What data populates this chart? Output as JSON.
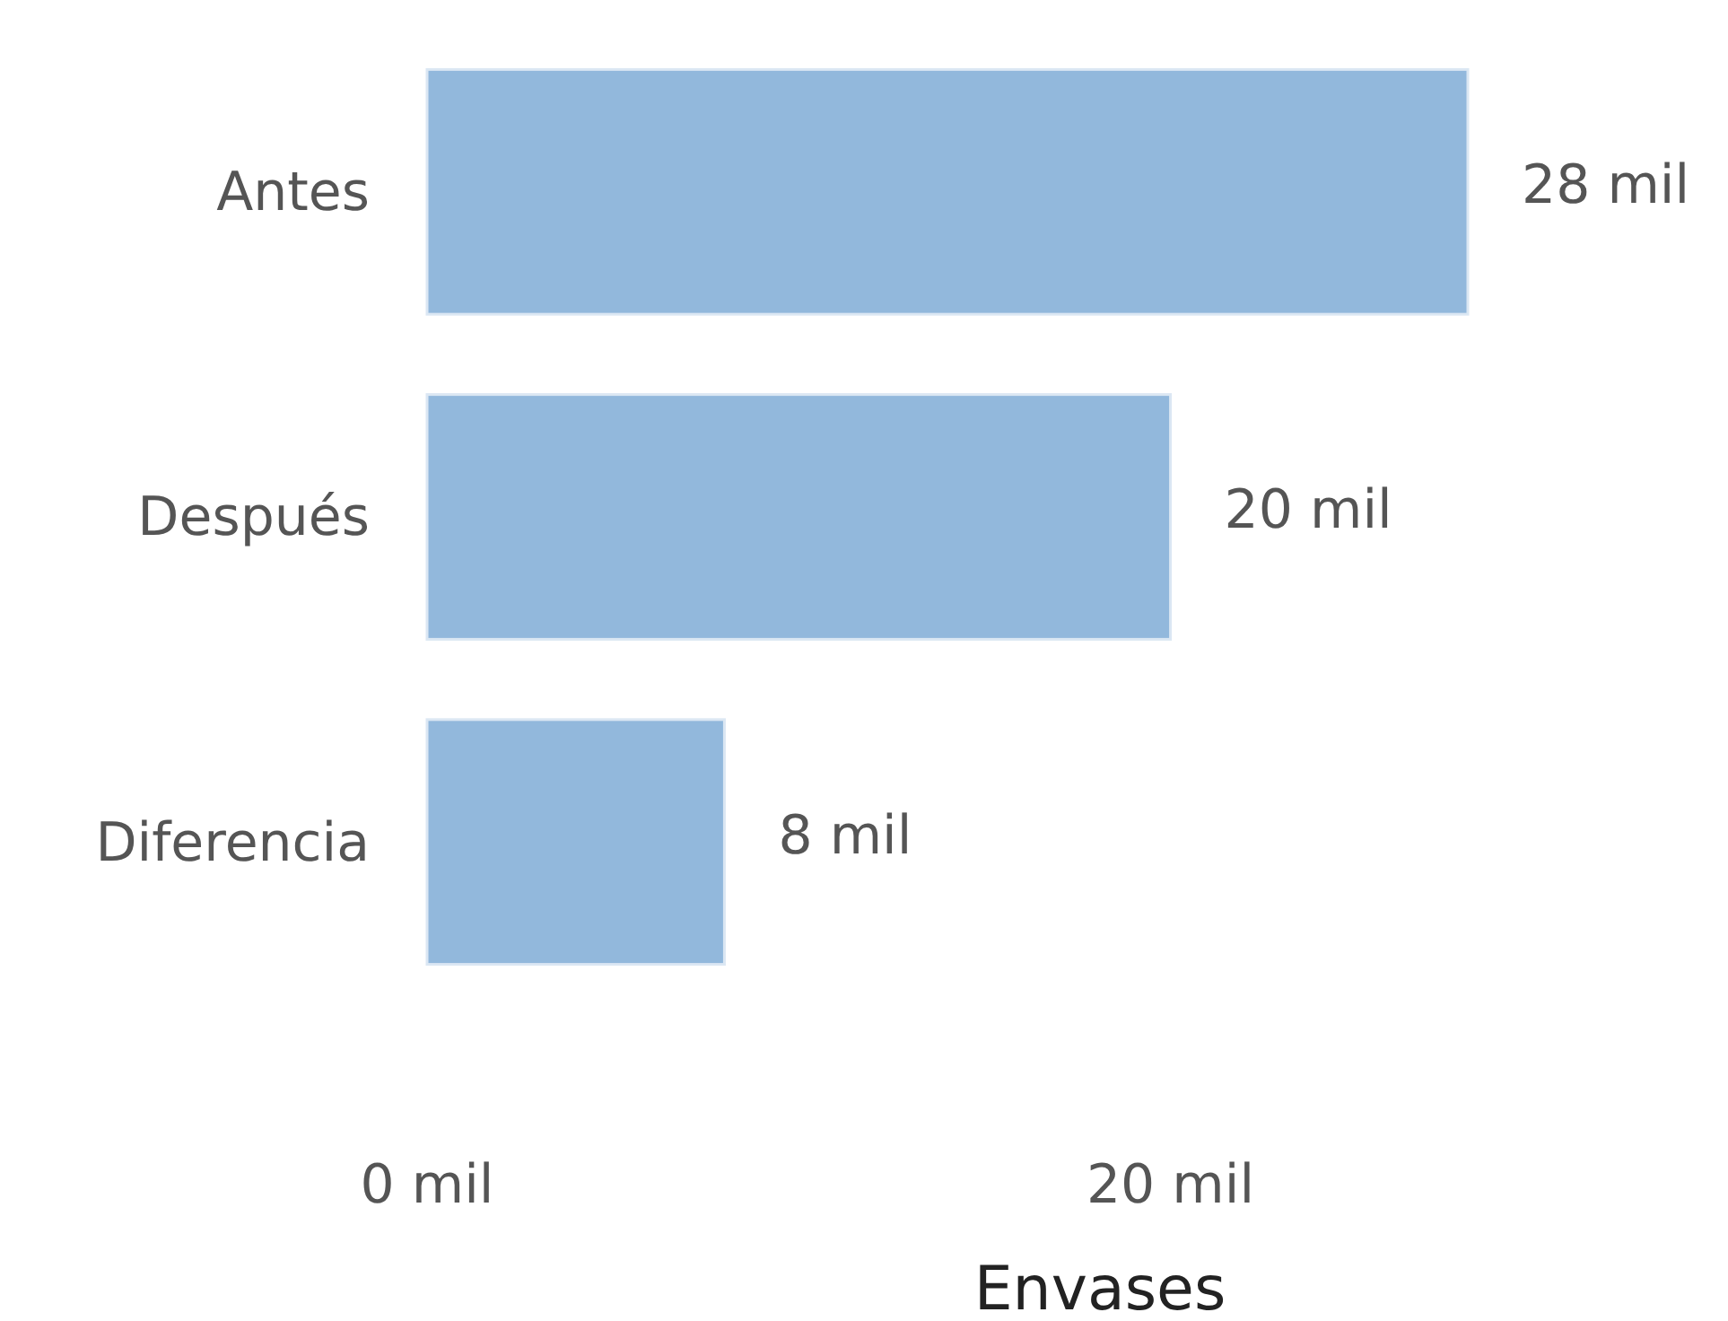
{
  "chart_data": {
    "type": "bar",
    "orientation": "horizontal",
    "xlabel": "Envases",
    "categories": [
      "Antes",
      "Después",
      "Diferencia"
    ],
    "values": [
      28,
      20,
      8
    ],
    "value_labels": [
      "28 mil",
      "20 mil",
      "8 mil"
    ],
    "color": "#92b8dc",
    "xlim": [
      0,
      28
    ],
    "xticks": [
      {
        "value": 0,
        "label": "0 mil"
      },
      {
        "value": 20,
        "label": "20 mil"
      }
    ],
    "tick_labels": "xy"
  }
}
